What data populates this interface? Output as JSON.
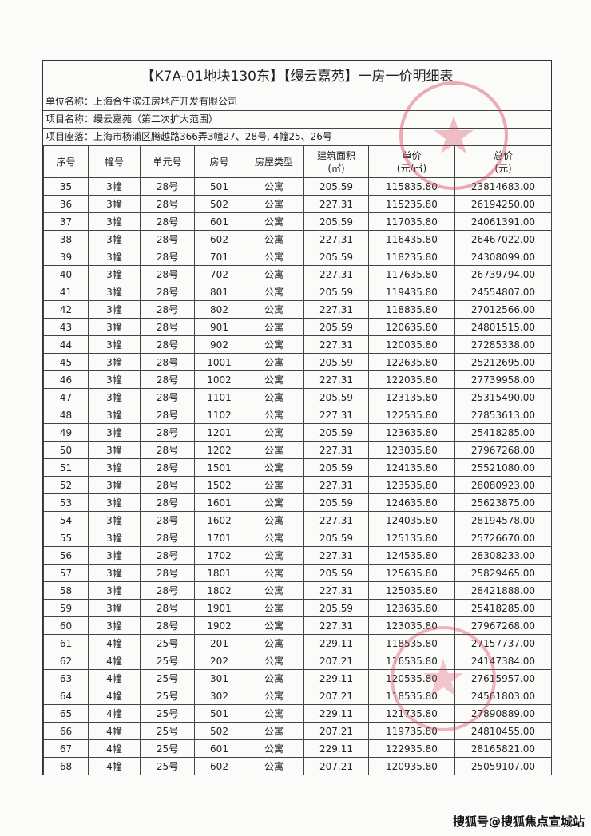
{
  "title": "【K7A-01地块130东】【缦云嘉苑】一房一价明细表",
  "info": {
    "company": "单位名称：上海合生滨江房地产开发有限公司",
    "project": "项目名称：缦云嘉苑（第二次扩大范围）",
    "location": "项目座落：上海市杨浦区腾越路366弄3幢27、28号, 4幢25、26号"
  },
  "columns": [
    "序号",
    "幢号",
    "单元号",
    "房号",
    "房屋类型",
    "建筑面积\n(㎡)",
    "单价\n(元/㎡)",
    "总价\n(元)"
  ],
  "rows": [
    [
      "35",
      "3幢",
      "28号",
      "501",
      "公寓",
      "205.59",
      "115835.80",
      "23814683.00"
    ],
    [
      "36",
      "3幢",
      "28号",
      "502",
      "公寓",
      "227.31",
      "115235.80",
      "26194250.00"
    ],
    [
      "37",
      "3幢",
      "28号",
      "601",
      "公寓",
      "205.59",
      "117035.80",
      "24061391.00"
    ],
    [
      "38",
      "3幢",
      "28号",
      "602",
      "公寓",
      "227.31",
      "116435.80",
      "26467022.00"
    ],
    [
      "39",
      "3幢",
      "28号",
      "701",
      "公寓",
      "205.59",
      "118235.80",
      "24308099.00"
    ],
    [
      "40",
      "3幢",
      "28号",
      "702",
      "公寓",
      "227.31",
      "117635.80",
      "26739794.00"
    ],
    [
      "41",
      "3幢",
      "28号",
      "801",
      "公寓",
      "205.59",
      "119435.80",
      "24554807.00"
    ],
    [
      "42",
      "3幢",
      "28号",
      "802",
      "公寓",
      "227.31",
      "118835.80",
      "27012566.00"
    ],
    [
      "43",
      "3幢",
      "28号",
      "901",
      "公寓",
      "205.59",
      "120635.80",
      "24801515.00"
    ],
    [
      "44",
      "3幢",
      "28号",
      "902",
      "公寓",
      "227.31",
      "120035.80",
      "27285338.00"
    ],
    [
      "45",
      "3幢",
      "28号",
      "1001",
      "公寓",
      "205.59",
      "122635.80",
      "25212695.00"
    ],
    [
      "46",
      "3幢",
      "28号",
      "1002",
      "公寓",
      "227.31",
      "122035.80",
      "27739958.00"
    ],
    [
      "47",
      "3幢",
      "28号",
      "1101",
      "公寓",
      "205.59",
      "123135.80",
      "25315490.00"
    ],
    [
      "48",
      "3幢",
      "28号",
      "1102",
      "公寓",
      "227.31",
      "122535.80",
      "27853613.00"
    ],
    [
      "49",
      "3幢",
      "28号",
      "1201",
      "公寓",
      "205.59",
      "123635.80",
      "25418285.00"
    ],
    [
      "50",
      "3幢",
      "28号",
      "1202",
      "公寓",
      "227.31",
      "123035.80",
      "27967268.00"
    ],
    [
      "51",
      "3幢",
      "28号",
      "1501",
      "公寓",
      "205.59",
      "124135.80",
      "25521080.00"
    ],
    [
      "52",
      "3幢",
      "28号",
      "1502",
      "公寓",
      "227.31",
      "123535.80",
      "28080923.00"
    ],
    [
      "53",
      "3幢",
      "28号",
      "1601",
      "公寓",
      "205.59",
      "124635.80",
      "25623875.00"
    ],
    [
      "54",
      "3幢",
      "28号",
      "1602",
      "公寓",
      "227.31",
      "124035.80",
      "28194578.00"
    ],
    [
      "55",
      "3幢",
      "28号",
      "1701",
      "公寓",
      "205.59",
      "125135.80",
      "25726670.00"
    ],
    [
      "56",
      "3幢",
      "28号",
      "1702",
      "公寓",
      "227.31",
      "124535.80",
      "28308233.00"
    ],
    [
      "57",
      "3幢",
      "28号",
      "1801",
      "公寓",
      "205.59",
      "125635.80",
      "25829465.00"
    ],
    [
      "58",
      "3幢",
      "28号",
      "1802",
      "公寓",
      "227.31",
      "125035.80",
      "28421888.00"
    ],
    [
      "59",
      "3幢",
      "28号",
      "1901",
      "公寓",
      "205.59",
      "123635.80",
      "25418285.00"
    ],
    [
      "60",
      "3幢",
      "28号",
      "1902",
      "公寓",
      "227.31",
      "123035.80",
      "27967268.00"
    ],
    [
      "61",
      "4幢",
      "25号",
      "201",
      "公寓",
      "229.11",
      "118535.80",
      "27157737.00"
    ],
    [
      "62",
      "4幢",
      "25号",
      "202",
      "公寓",
      "207.21",
      "116535.80",
      "24147384.00"
    ],
    [
      "63",
      "4幢",
      "25号",
      "301",
      "公寓",
      "229.11",
      "120535.80",
      "27615957.00"
    ],
    [
      "64",
      "4幢",
      "25号",
      "302",
      "公寓",
      "207.21",
      "118535.80",
      "24561803.00"
    ],
    [
      "65",
      "4幢",
      "25号",
      "501",
      "公寓",
      "229.11",
      "121735.80",
      "27890889.00"
    ],
    [
      "66",
      "4幢",
      "25号",
      "502",
      "公寓",
      "207.21",
      "119735.80",
      "24810455.00"
    ],
    [
      "67",
      "4幢",
      "25号",
      "601",
      "公寓",
      "229.11",
      "122935.80",
      "28165821.00"
    ],
    [
      "68",
      "4幢",
      "25号",
      "602",
      "公寓",
      "207.21",
      "120935.80",
      "25059107.00"
    ]
  ],
  "watermark": "搜狐号@搜狐焦点宣城站",
  "colors": {
    "stamp": "#d9485f",
    "ink": "#222222"
  }
}
